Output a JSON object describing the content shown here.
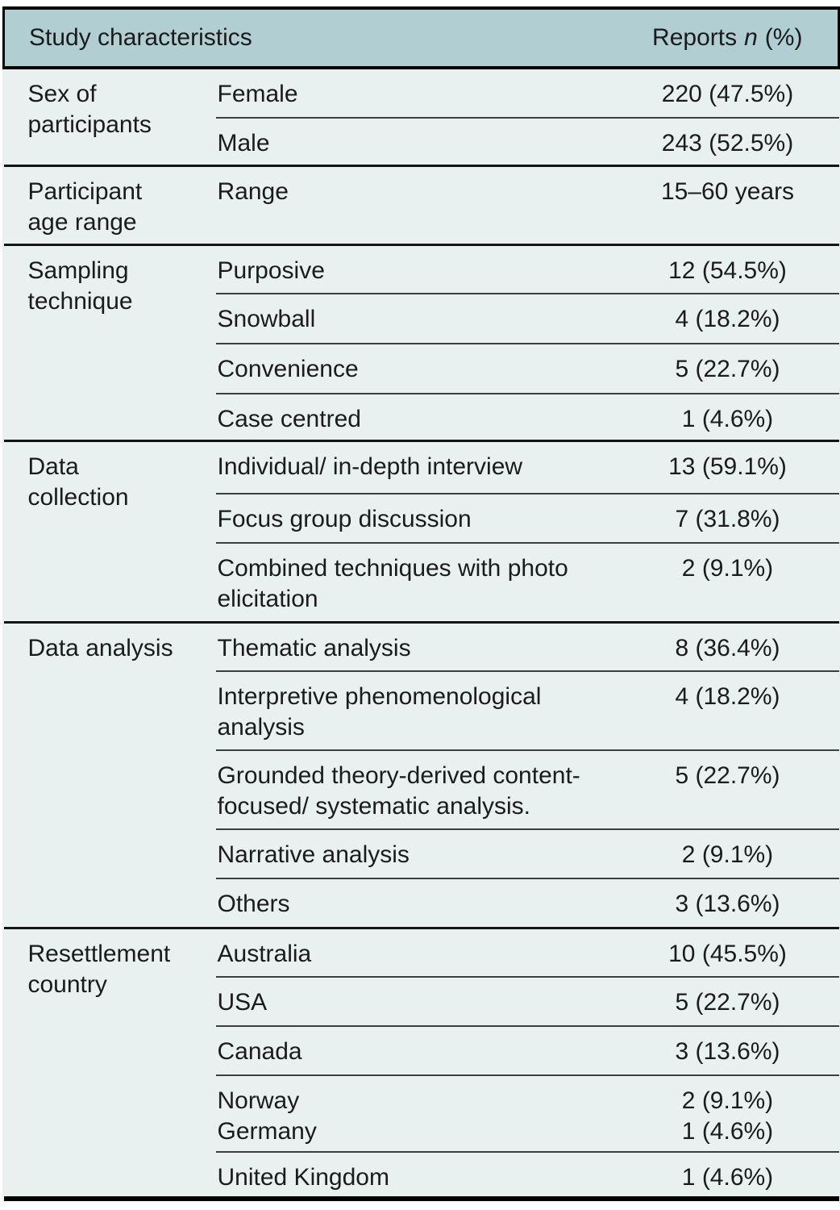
{
  "colors": {
    "header_bg": "#b1ced2",
    "body_bg": "#e9f1f0",
    "rule_dark": "#141414",
    "rule_thin": "#3a3f40",
    "text": "#1b1b1b"
  },
  "header": {
    "title": "Study characteristics",
    "reports_prefix": "Reports",
    "reports_n": "n",
    "reports_suffix": "(%)"
  },
  "groups": [
    {
      "category_lines": [
        "Sex of",
        "participants"
      ],
      "rows": [
        {
          "label_lines": [
            "Female"
          ],
          "value_lines": [
            "220 (47.5%)"
          ]
        },
        {
          "label_lines": [
            "Male"
          ],
          "value_lines": [
            "243 (52.5%)"
          ]
        }
      ]
    },
    {
      "category_lines": [
        "Participant",
        "age range"
      ],
      "rows": [
        {
          "label_lines": [
            "Range"
          ],
          "value_lines": [
            "15–60 years"
          ]
        }
      ]
    },
    {
      "category_lines": [
        "Sampling",
        "technique"
      ],
      "rows": [
        {
          "label_lines": [
            "Purposive"
          ],
          "value_lines": [
            "12 (54.5%)"
          ]
        },
        {
          "label_lines": [
            "Snowball"
          ],
          "value_lines": [
            "4 (18.2%)"
          ]
        },
        {
          "label_lines": [
            "Convenience"
          ],
          "value_lines": [
            "5 (22.7%)"
          ]
        },
        {
          "label_lines": [
            "Case centred"
          ],
          "value_lines": [
            "1 (4.6%)"
          ]
        }
      ]
    },
    {
      "category_lines": [
        "Data",
        "collection"
      ],
      "rows": [
        {
          "label_lines": [
            "Individual/ in-depth interview"
          ],
          "value_lines": [
            "13 (59.1%)"
          ]
        },
        {
          "label_lines": [
            "Focus group discussion"
          ],
          "value_lines": [
            "7 (31.8%)"
          ]
        },
        {
          "label_lines": [
            "Combined techniques with photo",
            "elicitation"
          ],
          "value_lines": [
            "2 (9.1%)"
          ]
        }
      ]
    },
    {
      "category_lines": [
        "Data analysis"
      ],
      "rows": [
        {
          "label_lines": [
            "Thematic analysis"
          ],
          "value_lines": [
            "8 (36.4%)"
          ]
        },
        {
          "label_lines": [
            "Interpretive phenomenological",
            "analysis"
          ],
          "value_lines": [
            "4 (18.2%)"
          ]
        },
        {
          "label_lines": [
            "Grounded theory-derived content-",
            "focused/ systematic analysis."
          ],
          "value_lines": [
            "5 (22.7%)"
          ]
        },
        {
          "label_lines": [
            "Narrative analysis"
          ],
          "value_lines": [
            "2 (9.1%)"
          ]
        },
        {
          "label_lines": [
            "Others"
          ],
          "value_lines": [
            "3 (13.6%)"
          ]
        }
      ]
    },
    {
      "category_lines": [
        "Resettlement",
        "country"
      ],
      "rows": [
        {
          "label_lines": [
            "Australia"
          ],
          "value_lines": [
            "10 (45.5%)"
          ]
        },
        {
          "label_lines": [
            "USA"
          ],
          "value_lines": [
            "5 (22.7%)"
          ]
        },
        {
          "label_lines": [
            "Canada"
          ],
          "value_lines": [
            "3 (13.6%)"
          ]
        },
        {
          "label_lines": [
            "Norway",
            "Germany"
          ],
          "value_lines": [
            "2 (9.1%)",
            "1 (4.6%)"
          ]
        },
        {
          "label_lines": [
            "United Kingdom"
          ],
          "value_lines": [
            "1 (4.6%)"
          ]
        }
      ]
    }
  ]
}
